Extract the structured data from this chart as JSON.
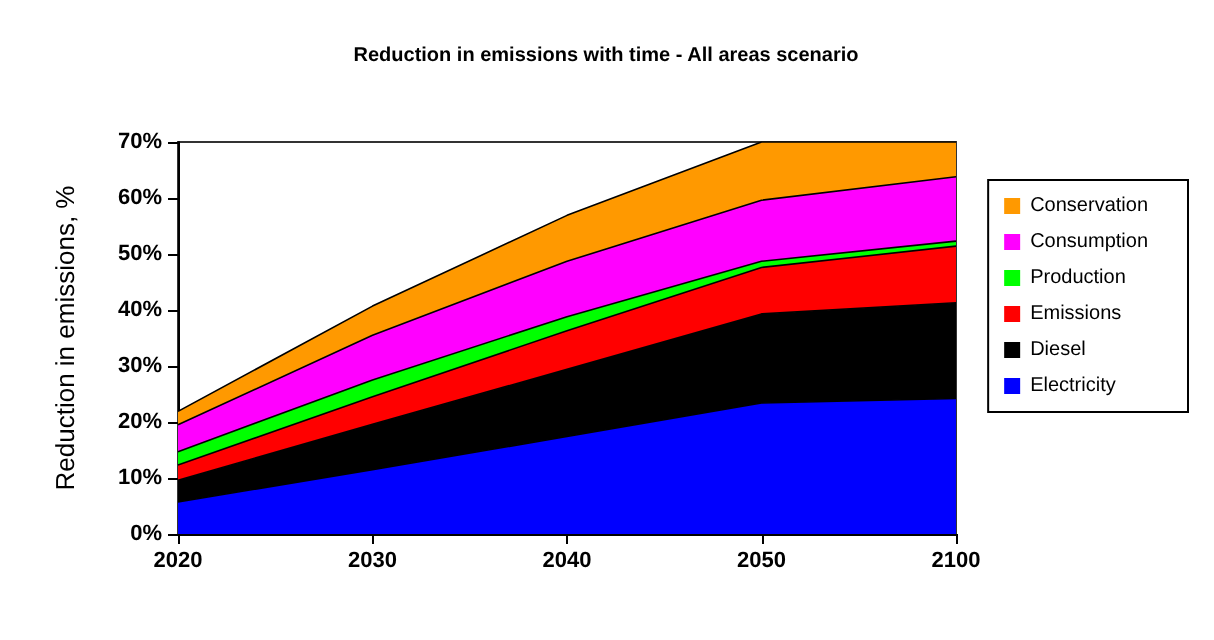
{
  "chart_data": {
    "type": "area",
    "stacked": true,
    "title": "Reduction in emissions with time - All areas scenario",
    "ylabel": "Reduction in emissions, %",
    "categories": [
      "2020",
      "2030",
      "2040",
      "2050",
      "2100"
    ],
    "series": [
      {
        "name": "Electricity",
        "color": "#0000ff",
        "values": [
          5.7,
          11.5,
          17.4,
          23.4,
          24.2
        ]
      },
      {
        "name": "Diesel",
        "color": "#000000",
        "values": [
          3.9,
          8.1,
          12.0,
          15.9,
          17.1
        ]
      },
      {
        "name": "Emissions",
        "color": "#ff0000",
        "values": [
          2.7,
          4.9,
          6.9,
          8.3,
          10.1
        ]
      },
      {
        "name": "Production",
        "color": "#00ff00",
        "values": [
          2.4,
          3.0,
          2.5,
          1.1,
          0.9
        ]
      },
      {
        "name": "Consumption",
        "color": "#ff00ff",
        "values": [
          4.8,
          8.0,
          9.9,
          10.9,
          11.5
        ]
      },
      {
        "name": "Conservation",
        "color": "#ff9900",
        "values": [
          2.4,
          5.2,
          8.2,
          10.4,
          6.2
        ]
      }
    ],
    "ylim": [
      0,
      70
    ],
    "yticks": [
      {
        "value": 0,
        "label": "0%"
      },
      {
        "value": 10,
        "label": "10%"
      },
      {
        "value": 20,
        "label": "20%"
      },
      {
        "value": 30,
        "label": "30%"
      },
      {
        "value": 40,
        "label": "40%"
      },
      {
        "value": 50,
        "label": "50%"
      },
      {
        "value": 60,
        "label": "60%"
      },
      {
        "value": 70,
        "label": "70%"
      }
    ],
    "grid": false,
    "legend": "right",
    "marker": "none",
    "line_style": "solid"
  }
}
